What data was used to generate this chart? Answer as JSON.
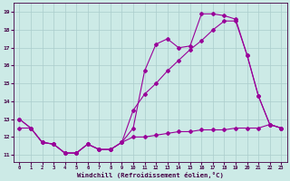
{
  "xlabel": "Windchill (Refroidissement éolien,°C)",
  "background_color": "#cceae6",
  "grid_color": "#aacccc",
  "line_color": "#990099",
  "marker": "D",
  "markersize": 2.0,
  "linewidth": 0.8,
  "xlim": [
    -0.5,
    23.5
  ],
  "ylim": [
    10.6,
    19.5
  ],
  "xticks": [
    0,
    1,
    2,
    3,
    4,
    5,
    6,
    7,
    8,
    9,
    10,
    11,
    12,
    13,
    14,
    15,
    16,
    17,
    18,
    19,
    20,
    21,
    22,
    23
  ],
  "yticks": [
    11,
    12,
    13,
    14,
    15,
    16,
    17,
    18,
    19
  ],
  "series": [
    {
      "x": [
        0,
        1,
        2,
        3,
        4,
        5,
        6,
        7,
        8,
        9,
        10,
        11,
        12,
        13,
        14,
        15,
        16,
        17,
        18,
        19,
        20,
        21,
        22,
        23
      ],
      "y": [
        13.0,
        12.5,
        11.7,
        11.6,
        11.1,
        11.1,
        11.6,
        11.3,
        11.3,
        11.7,
        12.5,
        15.7,
        17.2,
        17.5,
        17.0,
        17.1,
        18.9,
        18.9,
        18.8,
        18.6,
        16.6,
        14.3,
        12.7,
        12.5
      ]
    },
    {
      "x": [
        0,
        1,
        2,
        3,
        4,
        5,
        6,
        7,
        8,
        9,
        10,
        11,
        12,
        13,
        14,
        15,
        16,
        17,
        18,
        19,
        20,
        21,
        22,
        23
      ],
      "y": [
        13.0,
        12.5,
        11.7,
        11.6,
        11.1,
        11.1,
        11.6,
        11.3,
        11.3,
        11.7,
        13.5,
        14.4,
        15.0,
        15.7,
        16.3,
        16.9,
        17.4,
        18.0,
        18.5,
        18.5,
        16.6,
        14.3,
        12.7,
        12.5
      ]
    },
    {
      "x": [
        0,
        1,
        2,
        3,
        4,
        5,
        6,
        7,
        8,
        9,
        10,
        11,
        12,
        13,
        14,
        15,
        16,
        17,
        18,
        19,
        20,
        21,
        22,
        23
      ],
      "y": [
        12.5,
        12.5,
        11.7,
        11.6,
        11.1,
        11.1,
        11.6,
        11.3,
        11.3,
        11.7,
        12.0,
        12.0,
        12.1,
        12.2,
        12.3,
        12.3,
        12.4,
        12.4,
        12.4,
        12.5,
        12.5,
        12.5,
        12.7,
        12.5
      ]
    }
  ]
}
